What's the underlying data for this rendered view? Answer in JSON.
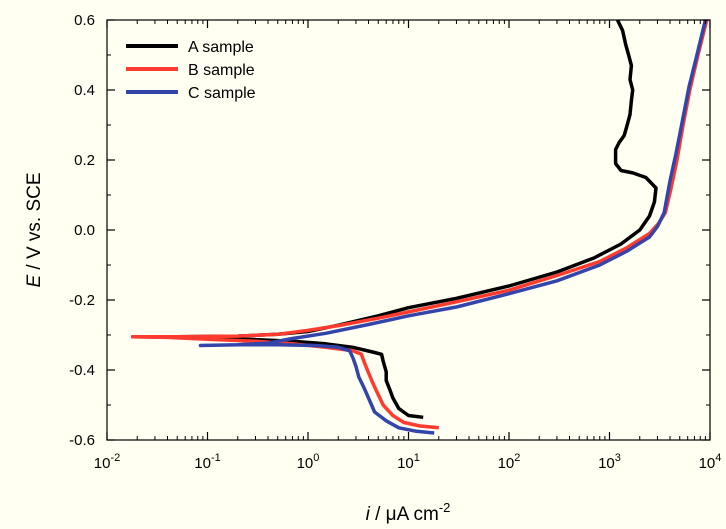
{
  "chart_data": {
    "type": "line",
    "x_scale": "log",
    "xlim": [
      0.01,
      10000
    ],
    "ylim": [
      -0.6,
      0.6
    ],
    "grid": false,
    "legend_position": "top-left",
    "xlabel": {
      "symbol": "i",
      "text": " / μA cm",
      "superscript": "-2"
    },
    "ylabel": {
      "symbol": "E",
      "text": " / V vs. SCE"
    },
    "x_ticks": [
      {
        "value": 0.01,
        "base": "10",
        "exp": "-2"
      },
      {
        "value": 0.1,
        "base": "10",
        "exp": "-1"
      },
      {
        "value": 1,
        "base": "10",
        "exp": "0"
      },
      {
        "value": 10,
        "base": "10",
        "exp": "1"
      },
      {
        "value": 100,
        "base": "10",
        "exp": "2"
      },
      {
        "value": 1000,
        "base": "10",
        "exp": "3"
      },
      {
        "value": 10000,
        "base": "10",
        "exp": "4"
      }
    ],
    "y_ticks": [
      {
        "value": 0.6,
        "label": "0.6"
      },
      {
        "value": 0.4,
        "label": "0.4"
      },
      {
        "value": 0.2,
        "label": "0.2"
      },
      {
        "value": 0.0,
        "label": "0.0"
      },
      {
        "value": -0.2,
        "label": "-0.2"
      },
      {
        "value": -0.4,
        "label": "-0.4"
      },
      {
        "value": -0.6,
        "label": "-0.6"
      }
    ],
    "series": [
      {
        "name": "A sample",
        "color": "#000000",
        "points": [
          [
            14,
            -0.535
          ],
          [
            10,
            -0.53
          ],
          [
            8,
            -0.51
          ],
          [
            7,
            -0.48
          ],
          [
            6.5,
            -0.455
          ],
          [
            6,
            -0.43
          ],
          [
            6,
            -0.405
          ],
          [
            5.6,
            -0.375
          ],
          [
            5.4,
            -0.355
          ],
          [
            4.6,
            -0.35
          ],
          [
            2.8,
            -0.335
          ],
          [
            1.5,
            -0.325
          ],
          [
            0.7,
            -0.318
          ],
          [
            0.3,
            -0.313
          ],
          [
            0.1,
            -0.309
          ],
          [
            0.04,
            -0.306
          ],
          [
            0.018,
            -0.305
          ],
          [
            0.05,
            -0.305
          ],
          [
            0.2,
            -0.303
          ],
          [
            0.5,
            -0.298
          ],
          [
            1.0,
            -0.29
          ],
          [
            2,
            -0.272
          ],
          [
            5,
            -0.245
          ],
          [
            10,
            -0.222
          ],
          [
            30,
            -0.195
          ],
          [
            100,
            -0.16
          ],
          [
            300,
            -0.12
          ],
          [
            700,
            -0.08
          ],
          [
            1300,
            -0.04
          ],
          [
            2000,
            0.0
          ],
          [
            2500,
            0.04
          ],
          [
            2800,
            0.08
          ],
          [
            2900,
            0.12
          ],
          [
            2300,
            0.15
          ],
          [
            1700,
            0.163
          ],
          [
            1300,
            0.17
          ],
          [
            1150,
            0.19
          ],
          [
            1150,
            0.23
          ],
          [
            1250,
            0.25
          ],
          [
            1400,
            0.27
          ],
          [
            1500,
            0.3
          ],
          [
            1600,
            0.33
          ],
          [
            1650,
            0.37
          ],
          [
            1700,
            0.4
          ],
          [
            1600,
            0.43
          ],
          [
            1650,
            0.47
          ],
          [
            1550,
            0.5
          ],
          [
            1450,
            0.53
          ],
          [
            1350,
            0.57
          ],
          [
            1200,
            0.6
          ]
        ]
      },
      {
        "name": "B sample",
        "color": "#ff3b30",
        "points": [
          [
            20,
            -0.565
          ],
          [
            13,
            -0.56
          ],
          [
            9,
            -0.55
          ],
          [
            7,
            -0.53
          ],
          [
            5.6,
            -0.5
          ],
          [
            4.8,
            -0.46
          ],
          [
            4.3,
            -0.43
          ],
          [
            3.9,
            -0.4
          ],
          [
            3.6,
            -0.375
          ],
          [
            3.4,
            -0.355
          ],
          [
            2.8,
            -0.345
          ],
          [
            1.5,
            -0.335
          ],
          [
            0.7,
            -0.325
          ],
          [
            0.3,
            -0.318
          ],
          [
            0.1,
            -0.312
          ],
          [
            0.04,
            -0.307
          ],
          [
            0.018,
            -0.305
          ],
          [
            0.05,
            -0.305
          ],
          [
            0.2,
            -0.303
          ],
          [
            0.5,
            -0.298
          ],
          [
            1.0,
            -0.287
          ],
          [
            2,
            -0.273
          ],
          [
            5,
            -0.252
          ],
          [
            10,
            -0.234
          ],
          [
            30,
            -0.205
          ],
          [
            100,
            -0.172
          ],
          [
            300,
            -0.13
          ],
          [
            800,
            -0.09
          ],
          [
            1500,
            -0.05
          ],
          [
            2500,
            -0.01
          ],
          [
            3100,
            0.02
          ],
          [
            3600,
            0.05
          ],
          [
            4100,
            0.12
          ],
          [
            4700,
            0.2
          ],
          [
            5400,
            0.3
          ],
          [
            6300,
            0.4
          ],
          [
            7600,
            0.5
          ],
          [
            9300,
            0.6
          ]
        ]
      },
      {
        "name": "C sample",
        "color": "#3344aa",
        "points": [
          [
            18,
            -0.58
          ],
          [
            12,
            -0.575
          ],
          [
            8,
            -0.565
          ],
          [
            6,
            -0.545
          ],
          [
            4.6,
            -0.52
          ],
          [
            4.0,
            -0.48
          ],
          [
            3.6,
            -0.45
          ],
          [
            3.2,
            -0.42
          ],
          [
            3.0,
            -0.39
          ],
          [
            2.8,
            -0.365
          ],
          [
            2.6,
            -0.345
          ],
          [
            2.0,
            -0.335
          ],
          [
            1.2,
            -0.33
          ],
          [
            0.5,
            -0.328
          ],
          [
            0.2,
            -0.328
          ],
          [
            0.085,
            -0.33
          ],
          [
            0.2,
            -0.328
          ],
          [
            0.4,
            -0.323
          ],
          [
            0.7,
            -0.31
          ],
          [
            1.5,
            -0.295
          ],
          [
            4,
            -0.27
          ],
          [
            10,
            -0.245
          ],
          [
            30,
            -0.22
          ],
          [
            100,
            -0.182
          ],
          [
            300,
            -0.145
          ],
          [
            800,
            -0.1
          ],
          [
            1500,
            -0.06
          ],
          [
            2500,
            -0.02
          ],
          [
            3000,
            0.01
          ],
          [
            3500,
            0.05
          ],
          [
            4000,
            0.14
          ],
          [
            4600,
            0.22
          ],
          [
            5300,
            0.31
          ],
          [
            6200,
            0.41
          ],
          [
            7400,
            0.5
          ],
          [
            9000,
            0.6
          ]
        ]
      }
    ]
  }
}
